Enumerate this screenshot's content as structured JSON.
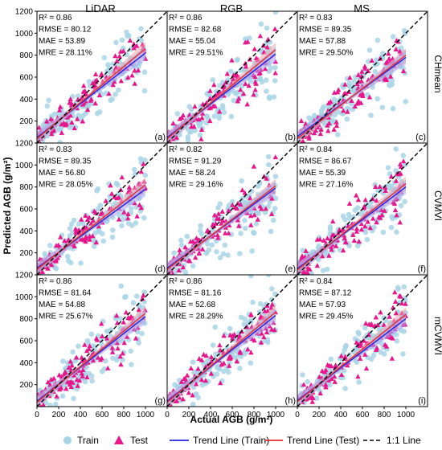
{
  "figure": {
    "col_titles": [
      "LiDAR",
      "RGB",
      "MS"
    ],
    "row_titles": [
      "CHmean",
      "CVMVI",
      "mCVMVI"
    ],
    "xlabel": "Actual AGB (g/m²)",
    "ylabel": "Predicted AGB (g/m²)"
  },
  "legend": {
    "train": "Train",
    "test": "Test",
    "trend_train": "Trend Line (Train)",
    "trend_test": "Trend Line (Test)",
    "one_to_one": "1:1 Line"
  },
  "colors": {
    "train": "#a8d5e6",
    "test": "#e8158c",
    "trend_train": "#2222dd",
    "trend_test": "#e03030",
    "ci_test": "#f4a6a6",
    "ci_train": "#a6a6f4"
  },
  "chart_data": [
    {
      "type": "scatter",
      "panel_label": "(a)",
      "row": "CHmean",
      "column": "LiDAR",
      "stats": [
        "R² = 0.86",
        "RMSE = 80.12",
        "MAE = 53.89",
        "MRE = 28.11%"
      ],
      "trend_train": [
        [
          0,
          50
        ],
        [
          1000,
          820
        ]
      ],
      "trend_test": [
        [
          0,
          40
        ],
        [
          1000,
          860
        ]
      ],
      "xlim": [
        0,
        1200
      ],
      "ylim": [
        0,
        1200
      ],
      "xticks": [
        0,
        200,
        400,
        600,
        800,
        1000
      ],
      "yticks": [
        200,
        400,
        600,
        800,
        1000,
        1200
      ],
      "seed": 11
    },
    {
      "type": "scatter",
      "panel_label": "(b)",
      "row": "CHmean",
      "column": "RGB",
      "stats": [
        "R² = 0.86",
        "RMSE = 82.68",
        "MAE = 55.04",
        "MRE = 29.51%"
      ],
      "trend_train": [
        [
          0,
          50
        ],
        [
          1000,
          810
        ]
      ],
      "trend_test": [
        [
          0,
          40
        ],
        [
          1000,
          850
        ]
      ],
      "xlim": [
        0,
        1200
      ],
      "ylim": [
        0,
        1200
      ],
      "xticks": [
        0,
        200,
        400,
        600,
        800,
        1000
      ],
      "yticks": [
        200,
        400,
        600,
        800,
        1000,
        1200
      ],
      "seed": 23
    },
    {
      "type": "scatter",
      "panel_label": "(c)",
      "row": "CHmean",
      "column": "MS",
      "stats": [
        "R² = 0.83",
        "RMSE = 89.35",
        "MAE = 57.88",
        "MRE = 29.50%"
      ],
      "trend_train": [
        [
          0,
          60
        ],
        [
          1000,
          780
        ]
      ],
      "trend_test": [
        [
          0,
          40
        ],
        [
          1000,
          800
        ]
      ],
      "xlim": [
        0,
        1200
      ],
      "ylim": [
        0,
        1200
      ],
      "xticks": [
        0,
        200,
        400,
        600,
        800,
        1000
      ],
      "yticks": [
        200,
        400,
        600,
        800,
        1000,
        1200
      ],
      "seed": 37
    },
    {
      "type": "scatter",
      "panel_label": "(d)",
      "row": "CVMVI",
      "column": "LiDAR",
      "stats": [
        "R² = 0.83",
        "RMSE = 89.35",
        "MAE = 56.80",
        "MRE = 28.05%"
      ],
      "trend_train": [
        [
          0,
          60
        ],
        [
          1000,
          780
        ]
      ],
      "trend_test": [
        [
          0,
          50
        ],
        [
          1000,
          820
        ]
      ],
      "xlim": [
        0,
        1200
      ],
      "ylim": [
        0,
        1200
      ],
      "xticks": [
        0,
        200,
        400,
        600,
        800,
        1000
      ],
      "yticks": [
        200,
        400,
        600,
        800,
        1000,
        1200
      ],
      "seed": 41
    },
    {
      "type": "scatter",
      "panel_label": "(e)",
      "row": "CVMVI",
      "column": "RGB",
      "stats": [
        "R² = 0.82",
        "RMSE = 91.29",
        "MAE = 58.24",
        "MRE = 29.16%"
      ],
      "trend_train": [
        [
          0,
          60
        ],
        [
          1000,
          790
        ]
      ],
      "trend_test": [
        [
          0,
          50
        ],
        [
          1000,
          810
        ]
      ],
      "xlim": [
        0,
        1200
      ],
      "ylim": [
        0,
        1200
      ],
      "xticks": [
        0,
        200,
        400,
        600,
        800,
        1000
      ],
      "yticks": [
        200,
        400,
        600,
        800,
        1000,
        1200
      ],
      "seed": 53
    },
    {
      "type": "scatter",
      "panel_label": "(f)",
      "row": "CVMVI",
      "column": "MS",
      "stats": [
        "R² = 0.84",
        "RMSE = 86.67",
        "MAE = 55.39",
        "MRE = 27.16%"
      ],
      "trend_train": [
        [
          0,
          55
        ],
        [
          1000,
          800
        ]
      ],
      "trend_test": [
        [
          0,
          45
        ],
        [
          1000,
          830
        ]
      ],
      "xlim": [
        0,
        1200
      ],
      "ylim": [
        0,
        1200
      ],
      "xticks": [
        0,
        200,
        400,
        600,
        800,
        1000
      ],
      "yticks": [
        200,
        400,
        600,
        800,
        1000,
        1200
      ],
      "seed": 67
    },
    {
      "type": "scatter",
      "panel_label": "(g)",
      "row": "mCVMVI",
      "column": "LiDAR",
      "stats": [
        "R² = 0.86",
        "RMSE = 81.64",
        "MAE = 54.88",
        "MRE = 25.67%"
      ],
      "trend_train": [
        [
          0,
          50
        ],
        [
          1000,
          820
        ]
      ],
      "trend_test": [
        [
          0,
          40
        ],
        [
          1000,
          850
        ]
      ],
      "xlim": [
        0,
        1200
      ],
      "ylim": [
        0,
        1200
      ],
      "xticks": [
        0,
        200,
        400,
        600,
        800,
        1000
      ],
      "yticks": [
        200,
        400,
        600,
        800,
        1000,
        1200
      ],
      "seed": 79
    },
    {
      "type": "scatter",
      "panel_label": "(h)",
      "row": "mCVMVI",
      "column": "RGB",
      "stats": [
        "R² = 0.86",
        "RMSE = 81.16",
        "MAE = 52.68",
        "MRE = 28.29%"
      ],
      "trend_train": [
        [
          0,
          50
        ],
        [
          1000,
          830
        ]
      ],
      "trend_test": [
        [
          0,
          40
        ],
        [
          1000,
          860
        ]
      ],
      "xlim": [
        0,
        1200
      ],
      "ylim": [
        0,
        1200
      ],
      "xticks": [
        0,
        200,
        400,
        600,
        800,
        1000
      ],
      "yticks": [
        200,
        400,
        600,
        800,
        1000,
        1200
      ],
      "seed": 89
    },
    {
      "type": "scatter",
      "panel_label": "(i)",
      "row": "mCVMVI",
      "column": "MS",
      "stats": [
        "R² = 0.84",
        "RMSE = 87.12",
        "MAE = 57.93",
        "MRE = 29.45%"
      ],
      "trend_train": [
        [
          0,
          55
        ],
        [
          1000,
          800
        ]
      ],
      "trend_test": [
        [
          0,
          45
        ],
        [
          1000,
          840
        ]
      ],
      "xlim": [
        0,
        1200
      ],
      "ylim": [
        0,
        1200
      ],
      "xticks": [
        0,
        200,
        400,
        600,
        800,
        1000
      ],
      "yticks": [
        200,
        400,
        600,
        800,
        1000,
        1200
      ],
      "seed": 97
    }
  ]
}
